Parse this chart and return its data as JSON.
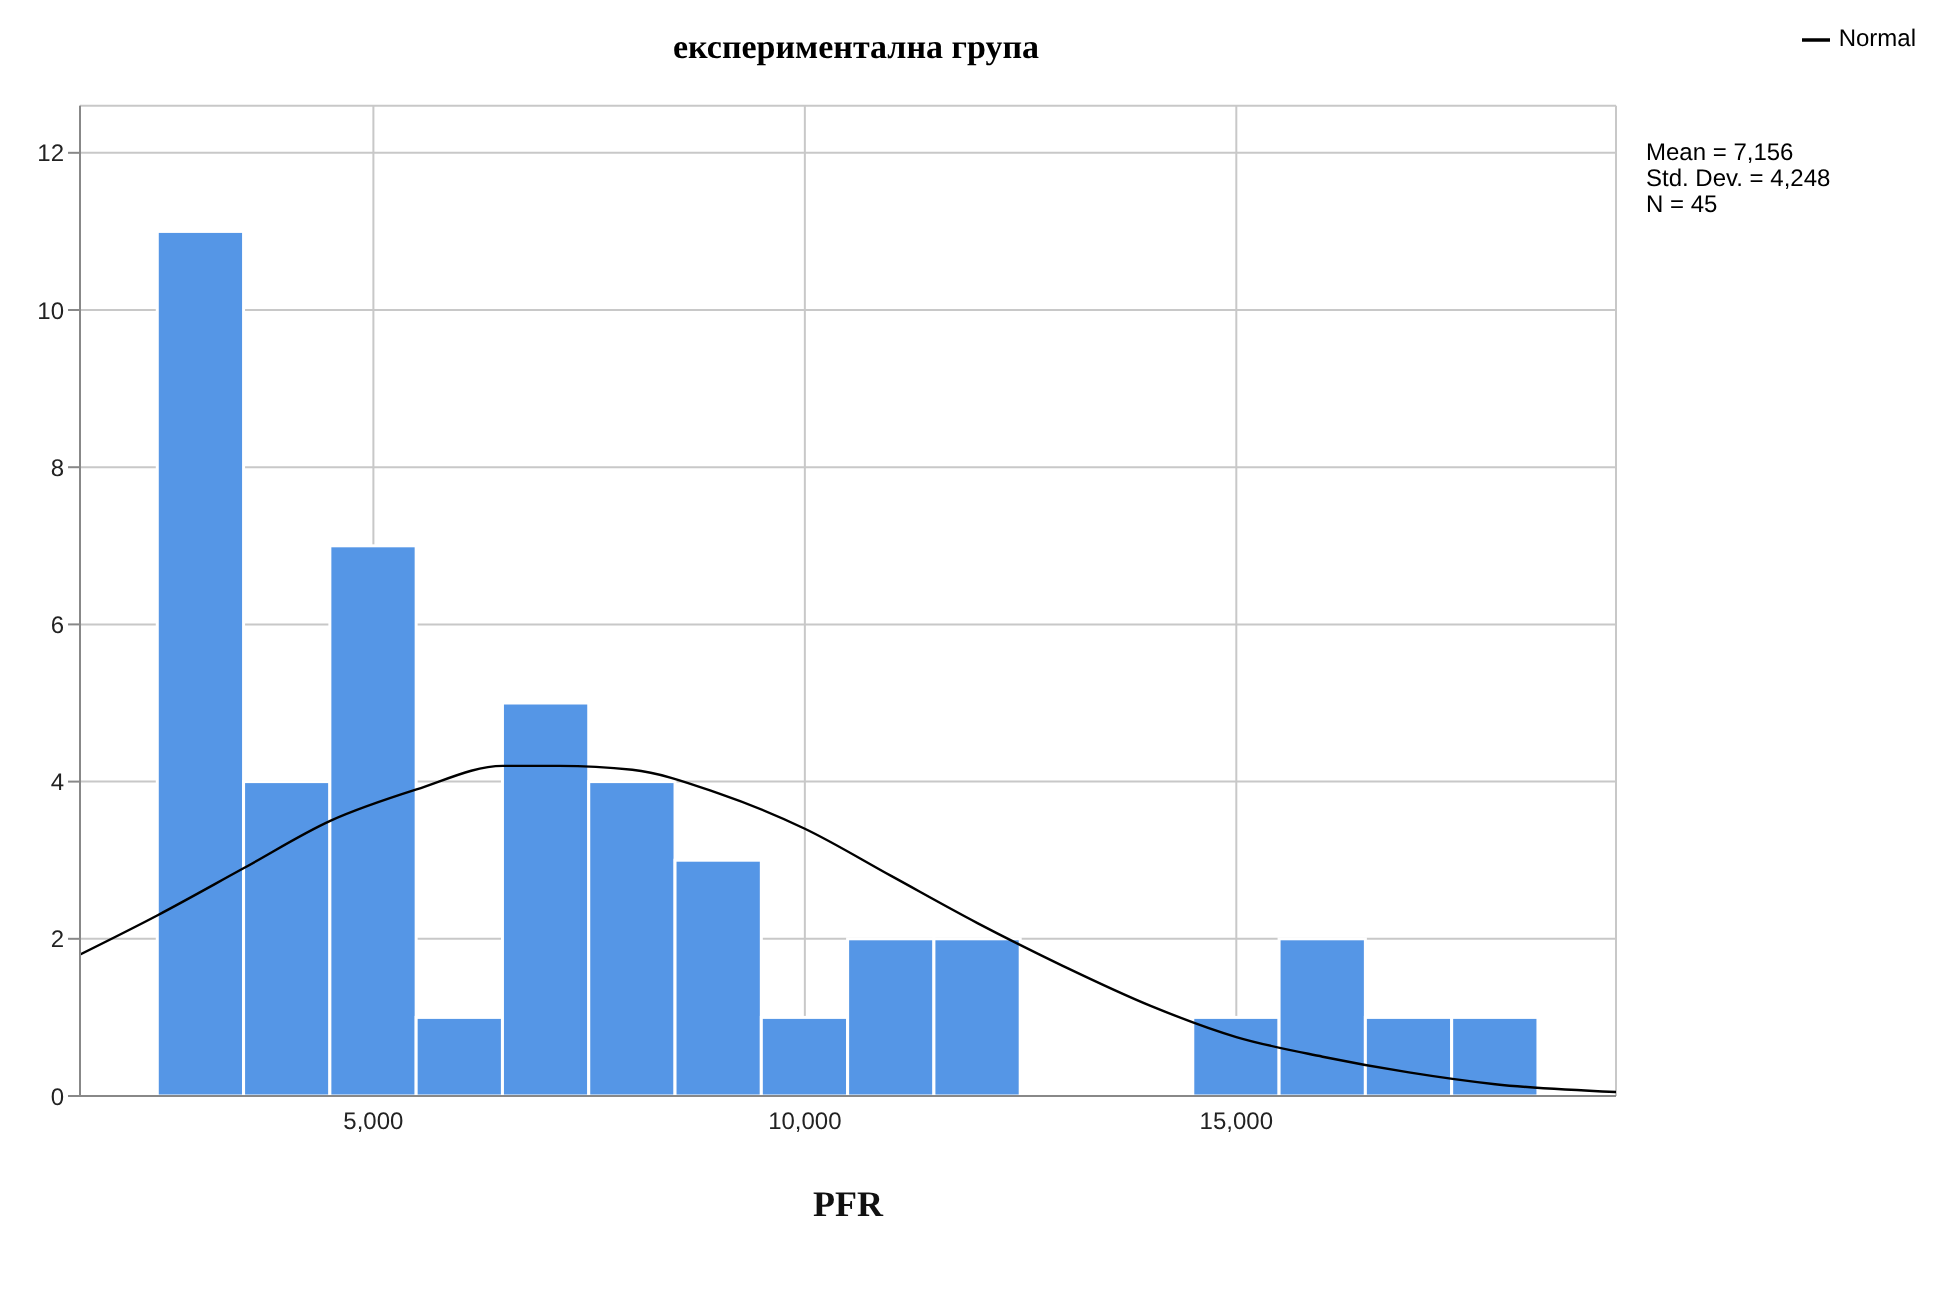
{
  "chart_data": {
    "type": "histogram",
    "title": "експериментална група",
    "xlabel": "PFR",
    "bins": [
      2500,
      3500,
      4500,
      5500,
      6500,
      7500,
      8500,
      9500,
      10500,
      11500,
      12500,
      13500,
      14500,
      15500,
      16500,
      17500,
      18500
    ],
    "values": [
      11,
      4,
      7,
      1,
      5,
      4,
      3,
      1,
      2,
      2,
      0,
      0,
      1,
      2,
      1,
      1
    ],
    "color": "#5596e6",
    "series": [
      {
        "type": "line",
        "name": "Normal",
        "color": "#000000",
        "x": [
          1600,
          2500,
          3500,
          4500,
          5500,
          6500,
          7156,
          8000,
          9000,
          10000,
          11000,
          12000,
          13000,
          14000,
          15000,
          16000,
          17000,
          18000,
          19400
        ],
        "values": [
          1.8,
          2.3,
          2.9,
          3.5,
          3.9,
          4.2,
          4.2,
          4.15,
          3.85,
          3.4,
          2.8,
          2.2,
          1.65,
          1.15,
          0.75,
          0.5,
          0.3,
          0.15,
          0.05
        ]
      }
    ],
    "xlim": [
      1600,
      19400
    ],
    "xticks": [
      {
        "value": 5000,
        "label": "5,000"
      },
      {
        "value": 10000,
        "label": "10,000"
      },
      {
        "value": 15000,
        "label": "15,000"
      }
    ],
    "ylim": [
      0,
      12.6
    ],
    "yticks": [
      0,
      2,
      4,
      6,
      8,
      10,
      12
    ],
    "grid": true,
    "legend": "top right",
    "marker": "none",
    "line_style": "solid",
    "annotations": [
      "Mean = 7,156",
      "Std. Dev. = 4,248",
      "N = 45"
    ]
  }
}
